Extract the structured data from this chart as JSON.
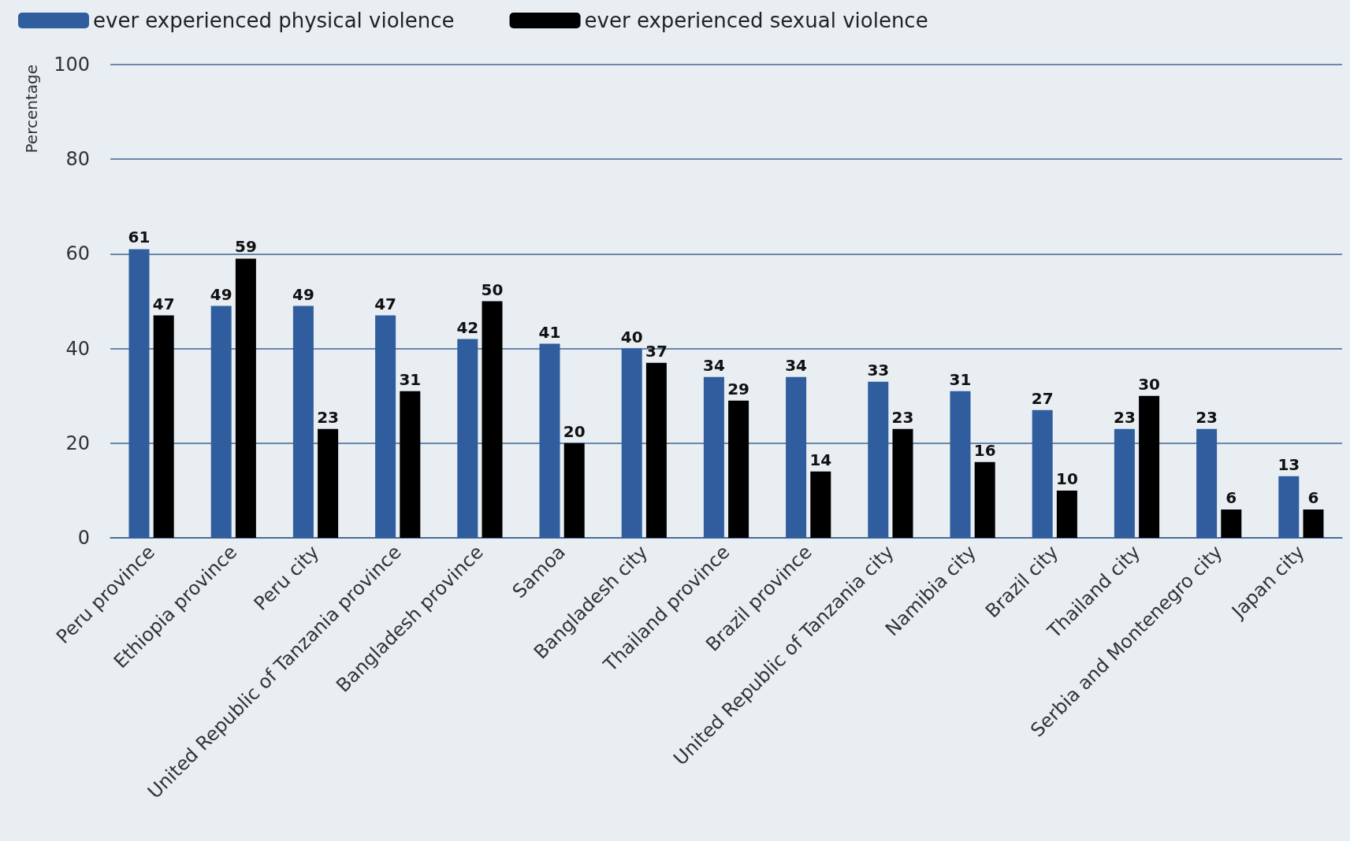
{
  "chart_data": {
    "type": "bar",
    "ylabel": "Percentage",
    "categories": [
      "Peru province",
      "Ethiopia province",
      "Peru city",
      "United Republic of Tanzania province",
      "Bangladesh province",
      "Samoa",
      "Bangladesh city",
      "Thailand province",
      "Brazil province",
      "United Republic of Tanzania city",
      "Namibia city",
      "Brazil city",
      "Thailand city",
      "Serbia and Montenegro city",
      "Japan city"
    ],
    "series": [
      {
        "name": "ever experienced physical violence",
        "color": "#2f5d9e",
        "values": [
          61,
          49,
          49,
          47,
          42,
          41,
          40,
          34,
          34,
          33,
          31,
          27,
          23,
          23,
          13
        ]
      },
      {
        "name": "ever experienced sexual violence",
        "color": "#000000",
        "values": [
          47,
          59,
          23,
          31,
          50,
          20,
          37,
          29,
          14,
          23,
          16,
          10,
          30,
          6,
          6
        ]
      }
    ],
    "ylim": [
      0,
      100
    ],
    "yticks": [
      0,
      20,
      40,
      60,
      80,
      100
    ],
    "grid": "y",
    "legend": "top left",
    "data_labels": true
  }
}
